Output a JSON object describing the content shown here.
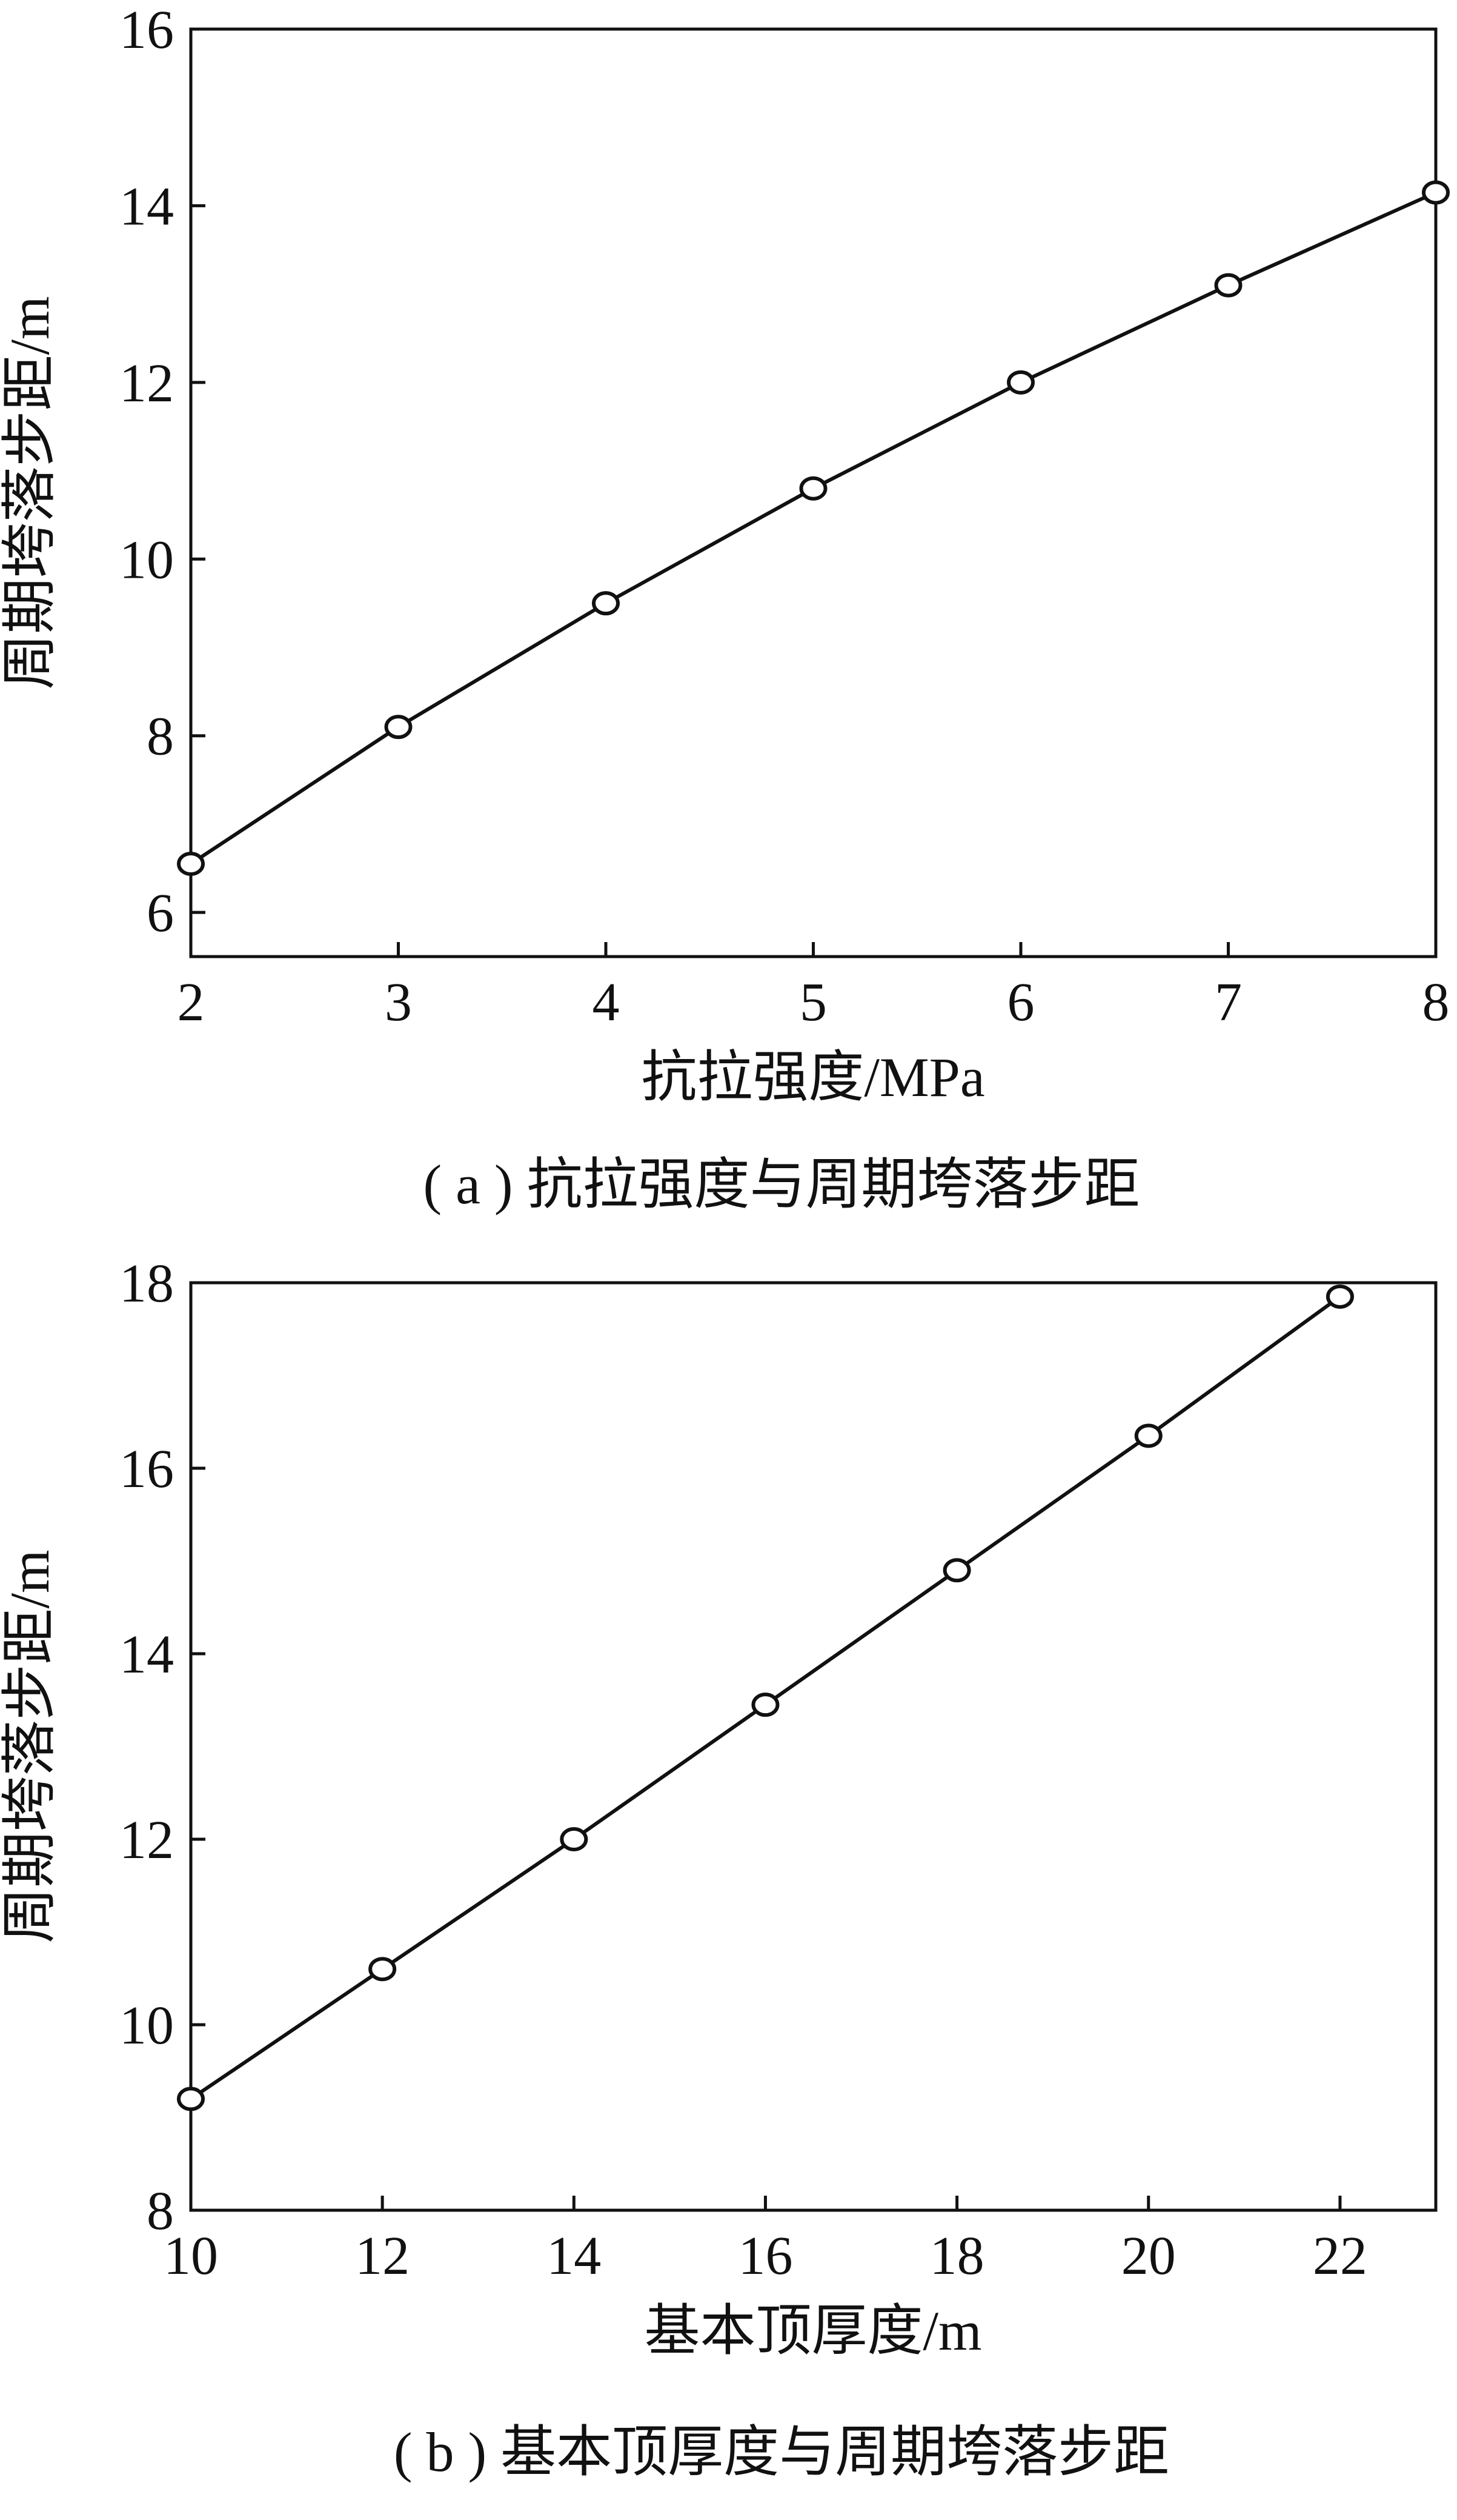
{
  "chart_data": [
    {
      "type": "line",
      "title": "",
      "xlabel": "抗拉强度/MPa",
      "ylabel": "周期垮落步距/m",
      "xlim": [
        2,
        8
      ],
      "ylim": [
        5.5,
        16
      ],
      "xticks": [
        2,
        3,
        4,
        5,
        6,
        7,
        8
      ],
      "yticks": [
        6,
        8,
        10,
        12,
        14,
        16
      ],
      "grid": false,
      "caption": "( a ) 抗拉强度与周期垮落步距",
      "series": [
        {
          "x": [
            2,
            3,
            4,
            5,
            6,
            7,
            8
          ],
          "y": [
            6.55,
            8.1,
            9.5,
            10.8,
            12.0,
            13.1,
            14.15
          ]
        }
      ]
    },
    {
      "type": "line",
      "title": "",
      "xlabel": "基本顶厚度/m",
      "ylabel": "周期垮落步距/m",
      "xlim": [
        10,
        23
      ],
      "ylim": [
        8,
        18
      ],
      "xticks": [
        10,
        12,
        14,
        16,
        18,
        20,
        22
      ],
      "yticks": [
        8,
        10,
        12,
        14,
        16,
        18
      ],
      "grid": false,
      "caption": "( b ) 基本顶厚度与周期垮落步距",
      "series": [
        {
          "x": [
            10,
            12,
            14,
            16,
            18,
            20,
            22
          ],
          "y": [
            9.2,
            10.6,
            12.0,
            13.45,
            14.9,
            16.35,
            17.85
          ]
        }
      ]
    }
  ]
}
